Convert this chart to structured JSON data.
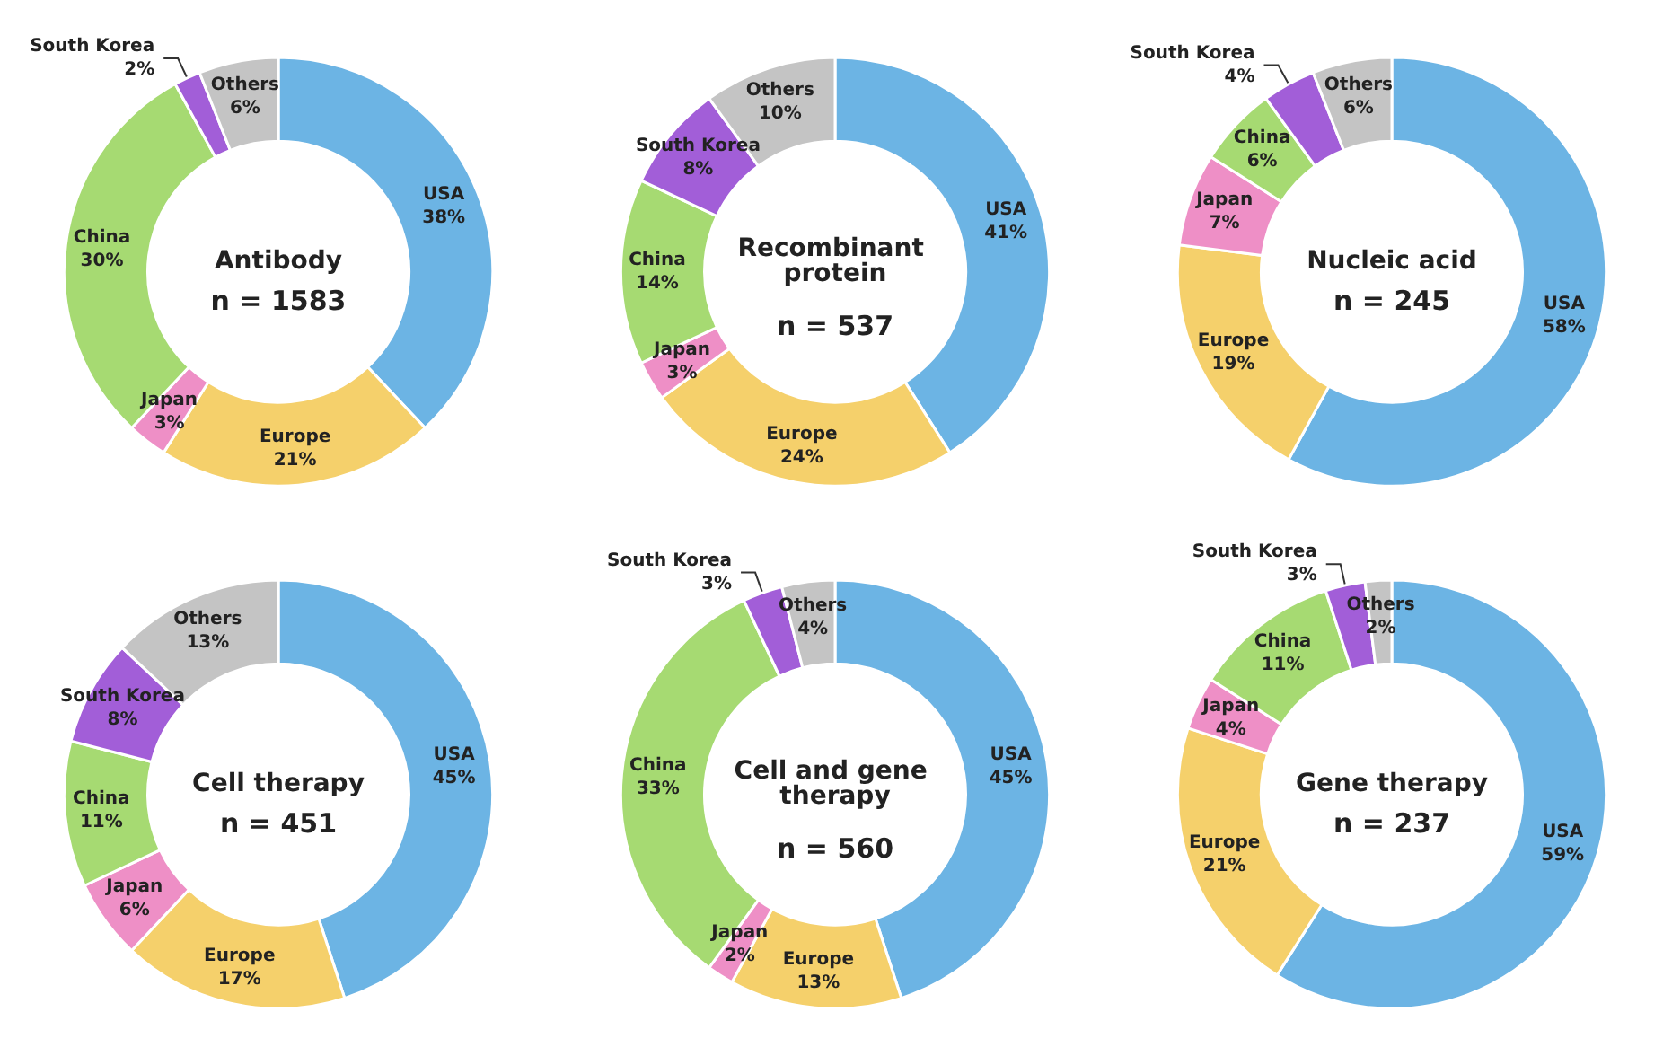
{
  "chart_data": [
    {
      "type": "donut",
      "title": "Antibody",
      "subtitle": "n = 1583",
      "categories": [
        "USA",
        "Europe",
        "Japan",
        "China",
        "South Korea",
        "Others"
      ],
      "values": [
        38,
        21,
        3,
        30,
        2,
        6
      ],
      "value_labels": [
        "38%",
        "21%",
        "3%",
        "30%",
        "2%",
        "6%"
      ],
      "colors": [
        "#6cb4e4",
        "#f5d06b",
        "#ee8fc6",
        "#a6da72",
        "#a25ed8",
        "#c4c4c4"
      ]
    },
    {
      "type": "donut",
      "title": "Recombinant protein",
      "subtitle": "n = 537",
      "categories": [
        "USA",
        "Europe",
        "Japan",
        "China",
        "South Korea",
        "Others"
      ],
      "values": [
        41,
        24,
        3,
        14,
        8,
        10
      ],
      "value_labels": [
        "41%",
        "24%",
        "3%",
        "14%",
        "8%",
        "10%"
      ],
      "colors": [
        "#6cb4e4",
        "#f5d06b",
        "#ee8fc6",
        "#a6da72",
        "#a25ed8",
        "#c4c4c4"
      ]
    },
    {
      "type": "donut",
      "title": "Nucleic acid",
      "subtitle": "n = 245",
      "categories": [
        "USA",
        "Europe",
        "Japan",
        "China",
        "South Korea",
        "Others"
      ],
      "values": [
        58,
        19,
        7,
        6,
        4,
        6
      ],
      "value_labels": [
        "58%",
        "19%",
        "7%",
        "6%",
        "4%",
        "6%"
      ],
      "colors": [
        "#6cb4e4",
        "#f5d06b",
        "#ee8fc6",
        "#a6da72",
        "#a25ed8",
        "#c4c4c4"
      ]
    },
    {
      "type": "donut",
      "title": "Cell therapy",
      "subtitle": "n = 451",
      "categories": [
        "USA",
        "Europe",
        "Japan",
        "China",
        "South Korea",
        "Others"
      ],
      "values": [
        45,
        17,
        6,
        11,
        8,
        13
      ],
      "value_labels": [
        "45%",
        "17%",
        "6%",
        "11%",
        "8%",
        "13%"
      ],
      "colors": [
        "#6cb4e4",
        "#f5d06b",
        "#ee8fc6",
        "#a6da72",
        "#a25ed8",
        "#c4c4c4"
      ]
    },
    {
      "type": "donut",
      "title": "Cell and gene therapy",
      "subtitle": "n = 560",
      "categories": [
        "USA",
        "Europe",
        "Japan",
        "China",
        "South Korea",
        "Others"
      ],
      "values": [
        45,
        13,
        2,
        33,
        3,
        4
      ],
      "value_labels": [
        "45%",
        "13%",
        "2%",
        "33%",
        "3%",
        "4%"
      ],
      "colors": [
        "#6cb4e4",
        "#f5d06b",
        "#ee8fc6",
        "#a6da72",
        "#a25ed8",
        "#c4c4c4"
      ]
    },
    {
      "type": "donut",
      "title": "Gene therapy",
      "subtitle": "n = 237",
      "categories": [
        "USA",
        "Europe",
        "Japan",
        "China",
        "South Korea",
        "Others"
      ],
      "values": [
        59,
        21,
        4,
        11,
        3,
        2
      ],
      "value_labels": [
        "59%",
        "21%",
        "4%",
        "11%",
        "3%",
        "2%"
      ],
      "colors": [
        "#6cb4e4",
        "#f5d06b",
        "#ee8fc6",
        "#a6da72",
        "#a25ed8",
        "#c4c4c4"
      ]
    }
  ]
}
